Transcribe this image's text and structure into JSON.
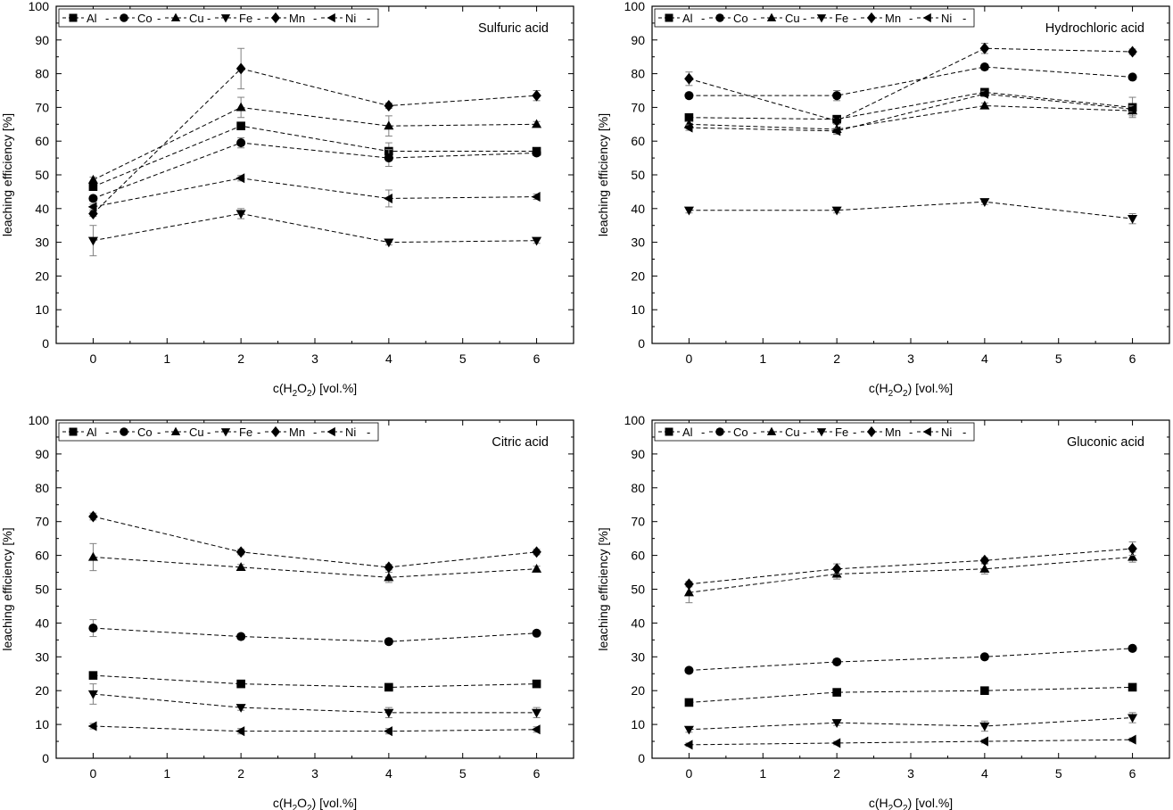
{
  "markers": {
    "Al": "square",
    "Co": "circle",
    "Cu": "triangle-up",
    "Fe": "triangle-down",
    "Mn": "diamond",
    "Ni": "triangle-left"
  },
  "legend_sep": "-",
  "chart_data": [
    {
      "type": "scatter",
      "title": "Sulfuric acid",
      "xlabel": "c(H2O2) [vol.%]",
      "ylabel": "leaching efficiency [%]",
      "xlim": [
        -0.5,
        6.5
      ],
      "ylim": [
        0,
        100
      ],
      "x_ticks": [
        0,
        1,
        2,
        3,
        4,
        5,
        6
      ],
      "y_ticks": [
        0,
        10,
        20,
        30,
        40,
        50,
        60,
        70,
        80,
        90,
        100
      ],
      "x": [
        0,
        2,
        4,
        6
      ],
      "legend": "top-left",
      "series": [
        {
          "name": "Al",
          "values": [
            46.5,
            64.5,
            57.0,
            57.0
          ],
          "errors": [
            0.8,
            1.0,
            2.5,
            0.8
          ]
        },
        {
          "name": "Co",
          "values": [
            43.0,
            59.5,
            55.0,
            56.5
          ],
          "errors": [
            0.8,
            1.5,
            2.5,
            0.8
          ]
        },
        {
          "name": "Cu",
          "values": [
            48.5,
            70.0,
            64.5,
            65.0
          ],
          "errors": [
            0.8,
            3.0,
            3.0,
            0.8
          ]
        },
        {
          "name": "Fe",
          "values": [
            30.5,
            38.5,
            30.0,
            30.5
          ],
          "errors": [
            4.5,
            1.5,
            0.8,
            0.8
          ]
        },
        {
          "name": "Mn",
          "values": [
            38.5,
            81.5,
            70.5,
            73.5
          ],
          "errors": [
            0.8,
            6.0,
            0.8,
            1.5
          ]
        },
        {
          "name": "Ni",
          "values": [
            40.5,
            49.0,
            43.0,
            43.5
          ],
          "errors": [
            0.8,
            0.8,
            2.5,
            0.8
          ]
        }
      ]
    },
    {
      "type": "scatter",
      "title": "Hydrochloric acid",
      "xlabel": "c(H2O2) [vol.%]",
      "ylabel": "leaching efficiency [%]",
      "xlim": [
        -0.5,
        6.5
      ],
      "ylim": [
        0,
        100
      ],
      "x_ticks": [
        0,
        1,
        2,
        3,
        4,
        5,
        6
      ],
      "y_ticks": [
        0,
        10,
        20,
        30,
        40,
        50,
        60,
        70,
        80,
        90,
        100
      ],
      "x": [
        0,
        2,
        4,
        6
      ],
      "legend": "top-left",
      "series": [
        {
          "name": "Al",
          "values": [
            67.0,
            66.5,
            74.5,
            70.0
          ],
          "errors": [
            0.8,
            0.8,
            0.8,
            3.0
          ]
        },
        {
          "name": "Co",
          "values": [
            73.5,
            73.5,
            82.0,
            79.0
          ],
          "errors": [
            0.8,
            1.5,
            0.8,
            0.8
          ]
        },
        {
          "name": "Cu",
          "values": [
            65.0,
            63.5,
            70.5,
            69.0
          ],
          "errors": [
            0.8,
            1.5,
            0.8,
            1.5
          ]
        },
        {
          "name": "Fe",
          "values": [
            39.5,
            39.5,
            42.0,
            37.0
          ],
          "errors": [
            0.8,
            0.8,
            0.8,
            1.5
          ]
        },
        {
          "name": "Mn",
          "values": [
            78.5,
            66.0,
            87.5,
            86.5
          ],
          "errors": [
            2.0,
            0.8,
            1.5,
            0.8
          ]
        },
        {
          "name": "Ni",
          "values": [
            64.0,
            63.0,
            74.0,
            69.5
          ],
          "errors": [
            0.8,
            0.8,
            0.8,
            0.8
          ]
        }
      ]
    },
    {
      "type": "scatter",
      "title": "Citric acid",
      "xlabel": "c(H2O2) [vol.%]",
      "ylabel": "leaching efficiency [%]",
      "xlim": [
        -0.5,
        6.5
      ],
      "ylim": [
        0,
        100
      ],
      "x_ticks": [
        0,
        1,
        2,
        3,
        4,
        5,
        6
      ],
      "y_ticks": [
        0,
        10,
        20,
        30,
        40,
        50,
        60,
        70,
        80,
        90,
        100
      ],
      "x": [
        0,
        2,
        4,
        6
      ],
      "legend": "top-left",
      "series": [
        {
          "name": "Al",
          "values": [
            24.5,
            22.0,
            21.0,
            22.0
          ],
          "errors": [
            0.8,
            0.8,
            0.8,
            0.8
          ]
        },
        {
          "name": "Co",
          "values": [
            38.5,
            36.0,
            34.5,
            37.0
          ],
          "errors": [
            2.5,
            0.8,
            0.8,
            0.8
          ]
        },
        {
          "name": "Cu",
          "values": [
            59.5,
            56.5,
            53.5,
            56.0
          ],
          "errors": [
            4.0,
            0.8,
            1.5,
            0.8
          ]
        },
        {
          "name": "Fe",
          "values": [
            19.0,
            15.0,
            13.5,
            13.5
          ],
          "errors": [
            3.0,
            0.8,
            1.5,
            1.5
          ]
        },
        {
          "name": "Mn",
          "values": [
            71.5,
            61.0,
            56.5,
            61.0
          ],
          "errors": [
            1.0,
            0.8,
            0.8,
            0.8
          ]
        },
        {
          "name": "Ni",
          "values": [
            9.5,
            8.0,
            8.0,
            8.5
          ],
          "errors": [
            0.8,
            0.8,
            0.8,
            0.8
          ]
        }
      ]
    },
    {
      "type": "scatter",
      "title": "Gluconic acid",
      "xlabel": "c(H2O2) [vol.%]",
      "ylabel": "leaching efficiency [%]",
      "xlim": [
        -0.5,
        6.5
      ],
      "ylim": [
        0,
        100
      ],
      "x_ticks": [
        0,
        1,
        2,
        3,
        4,
        5,
        6
      ],
      "y_ticks": [
        0,
        10,
        20,
        30,
        40,
        50,
        60,
        70,
        80,
        90,
        100
      ],
      "x": [
        0,
        2,
        4,
        6
      ],
      "legend": "top-left",
      "series": [
        {
          "name": "Al",
          "values": [
            16.5,
            19.5,
            20.0,
            21.0
          ],
          "errors": [
            0.8,
            0.8,
            0.8,
            0.8
          ]
        },
        {
          "name": "Co",
          "values": [
            26.0,
            28.5,
            30.0,
            32.5
          ],
          "errors": [
            0.8,
            0.8,
            0.8,
            0.8
          ]
        },
        {
          "name": "Cu",
          "values": [
            49.0,
            54.5,
            56.0,
            59.5
          ],
          "errors": [
            3.0,
            1.5,
            1.5,
            1.5
          ]
        },
        {
          "name": "Fe",
          "values": [
            8.5,
            10.5,
            9.5,
            12.0
          ],
          "errors": [
            0.8,
            0.8,
            1.5,
            1.5
          ]
        },
        {
          "name": "Mn",
          "values": [
            51.5,
            56.0,
            58.5,
            62.0
          ],
          "errors": [
            0.8,
            1.5,
            0.8,
            2.0
          ]
        },
        {
          "name": "Ni",
          "values": [
            4.0,
            4.5,
            5.0,
            5.5
          ],
          "errors": [
            0.5,
            0.5,
            0.5,
            0.5
          ]
        }
      ]
    }
  ]
}
